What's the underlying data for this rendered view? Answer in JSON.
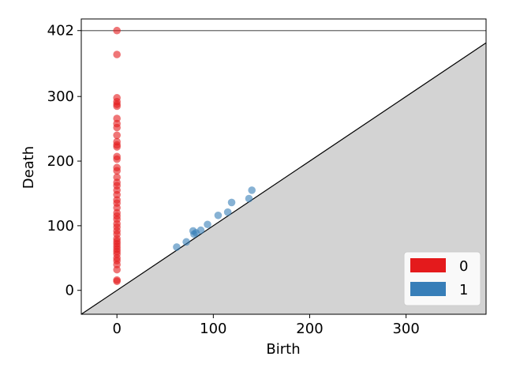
{
  "chart_data": {
    "type": "scatter",
    "title": "",
    "xlabel": "Birth",
    "ylabel": "Death",
    "xlim": [
      -37,
      383
    ],
    "ylim": [
      -37,
      420
    ],
    "xticks": [
      {
        "value": 0,
        "label": "0"
      },
      {
        "value": 100,
        "label": "100"
      },
      {
        "value": 200,
        "label": "200"
      },
      {
        "value": 300,
        "label": "300"
      }
    ],
    "yticks": [
      {
        "value": 0,
        "label": "0"
      },
      {
        "value": 100,
        "label": "100"
      },
      {
        "value": 200,
        "label": "200"
      },
      {
        "value": 300,
        "label": "300"
      },
      {
        "value": 402,
        "label": "402"
      }
    ],
    "infinity_line": 402,
    "diagonal": true,
    "grid": false,
    "legend_position": "bottom-right",
    "series": [
      {
        "name": "0",
        "color": "#e41a1c",
        "points": [
          [
            0,
            402
          ],
          [
            0,
            365
          ],
          [
            0,
            298
          ],
          [
            0,
            292
          ],
          [
            0,
            288
          ],
          [
            0,
            285
          ],
          [
            0,
            266
          ],
          [
            0,
            258
          ],
          [
            0,
            252
          ],
          [
            0,
            240
          ],
          [
            0,
            230
          ],
          [
            0,
            225
          ],
          [
            0,
            222
          ],
          [
            0,
            207
          ],
          [
            0,
            203
          ],
          [
            0,
            190
          ],
          [
            0,
            185
          ],
          [
            0,
            175
          ],
          [
            0,
            167
          ],
          [
            0,
            162
          ],
          [
            0,
            155
          ],
          [
            0,
            148
          ],
          [
            0,
            140
          ],
          [
            0,
            135
          ],
          [
            0,
            128
          ],
          [
            0,
            120
          ],
          [
            0,
            115
          ],
          [
            0,
            110
          ],
          [
            0,
            103
          ],
          [
            0,
            98
          ],
          [
            0,
            92
          ],
          [
            0,
            87
          ],
          [
            0,
            80
          ],
          [
            0,
            76
          ],
          [
            0,
            72
          ],
          [
            0,
            68
          ],
          [
            0,
            64
          ],
          [
            0,
            60
          ],
          [
            0,
            56
          ],
          [
            0,
            50
          ],
          [
            0,
            46
          ],
          [
            0,
            40
          ],
          [
            0,
            32
          ],
          [
            0,
            16
          ],
          [
            0,
            14
          ]
        ]
      },
      {
        "name": "1",
        "color": "#377eb8",
        "points": [
          [
            62,
            67
          ],
          [
            72,
            75
          ],
          [
            80,
            87
          ],
          [
            79,
            92
          ],
          [
            82,
            89
          ],
          [
            87,
            93
          ],
          [
            94,
            102
          ],
          [
            105,
            116
          ],
          [
            115,
            121
          ],
          [
            119,
            136
          ],
          [
            137,
            142
          ],
          [
            140,
            155
          ]
        ]
      }
    ]
  }
}
